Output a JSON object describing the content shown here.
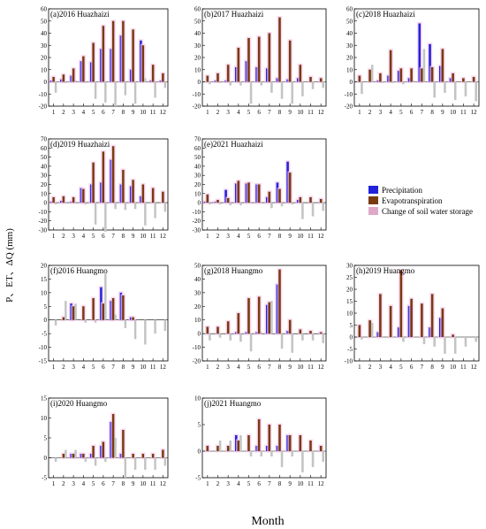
{
  "figure": {
    "ylabel": "P、ET、ΔQ (mm)",
    "xlabel": "Month"
  },
  "legend": [
    {
      "label": "Precipitation",
      "color": "#2222dd"
    },
    {
      "label": "Evapotranspiration",
      "color": "#7a3a10"
    },
    {
      "label": "Change of soil water storage",
      "color": "#e0a8c8"
    }
  ],
  "colors": {
    "precip": "#2222dd",
    "et": "#7a3a10",
    "dq": "#c4c4c4",
    "halo": "#f6c8ec"
  },
  "chart_data": [
    {
      "type": "bar",
      "title": "(a)2016 Huazhaizi",
      "categories": [
        "1",
        "2",
        "3",
        "4",
        "5",
        "6",
        "7",
        "8",
        "9",
        "10",
        "11",
        "12"
      ],
      "ylim": [
        -20,
        60
      ],
      "yticks": [
        -20,
        -10,
        0,
        10,
        20,
        30,
        40,
        50,
        60
      ],
      "series": [
        {
          "name": "Precipitation",
          "values": [
            1,
            2,
            5,
            17,
            16,
            27,
            27,
            38,
            10,
            34,
            1,
            1
          ]
        },
        {
          "name": "Evapotranspiration",
          "values": [
            4,
            6,
            11,
            21,
            32,
            46,
            50,
            50,
            43,
            30,
            14,
            7
          ]
        },
        {
          "name": "Change of soil water storage",
          "values": [
            -9,
            -1,
            1,
            -1,
            -14,
            -17,
            -20,
            -11,
            -18,
            3,
            -13,
            -5
          ]
        }
      ]
    },
    {
      "type": "bar",
      "title": "(b)2017 Huazhaizi",
      "categories": [
        "1",
        "2",
        "3",
        "4",
        "5",
        "6",
        "7",
        "8",
        "9",
        "10",
        "11",
        "12"
      ],
      "ylim": [
        -20,
        60
      ],
      "yticks": [
        -20,
        -10,
        0,
        10,
        20,
        30,
        40,
        50,
        60
      ],
      "series": [
        {
          "name": "Precipitation",
          "values": [
            0,
            1,
            1,
            12,
            17,
            12,
            11,
            3,
            2,
            3,
            0,
            0
          ]
        },
        {
          "name": "Evapotranspiration",
          "values": [
            5,
            7,
            14,
            28,
            36,
            37,
            40,
            53,
            34,
            14,
            4,
            3
          ]
        },
        {
          "name": "Change of soil water storage",
          "values": [
            -2,
            -1,
            -3,
            -3,
            -18,
            -3,
            -9,
            -14,
            -18,
            -12,
            -6,
            -5
          ]
        }
      ]
    },
    {
      "type": "bar",
      "title": "(c)2018 Huazhaizi",
      "categories": [
        "1",
        "2",
        "3",
        "4",
        "5",
        "6",
        "7",
        "8",
        "9",
        "10",
        "11",
        "12"
      ],
      "ylim": [
        -20,
        60
      ],
      "yticks": [
        -20,
        -10,
        0,
        10,
        20,
        30,
        40,
        50,
        60
      ],
      "series": [
        {
          "name": "Precipitation",
          "values": [
            0,
            0,
            1,
            5,
            9,
            3,
            48,
            31,
            13,
            3,
            0,
            0
          ]
        },
        {
          "name": "Evapotranspiration",
          "values": [
            5,
            10,
            7,
            26,
            11,
            11,
            11,
            12,
            27,
            7,
            3,
            4
          ]
        },
        {
          "name": "Change of soil water storage",
          "values": [
            -10,
            14,
            -1,
            -1,
            -2,
            1,
            27,
            -13,
            -9,
            -15,
            -12,
            -16
          ]
        }
      ]
    },
    {
      "type": "bar",
      "title": "(d)2019 Huazhaizi",
      "categories": [
        "1",
        "2",
        "3",
        "4",
        "5",
        "6",
        "7",
        "8",
        "9",
        "10",
        "11",
        "12"
      ],
      "ylim": [
        -30,
        70
      ],
      "yticks": [
        -30,
        -20,
        -10,
        0,
        10,
        20,
        30,
        40,
        50,
        60,
        70
      ],
      "series": [
        {
          "name": "Precipitation",
          "values": [
            1,
            2,
            1,
            16,
            20,
            22,
            47,
            20,
            18,
            7,
            0,
            0
          ]
        },
        {
          "name": "Evapotranspiration",
          "values": [
            6,
            7,
            6,
            15,
            44,
            56,
            62,
            36,
            25,
            20,
            16,
            12
          ]
        },
        {
          "name": "Change of soil water storage",
          "values": [
            -2,
            -1,
            -1,
            -2,
            -24,
            -32,
            -7,
            -8,
            -7,
            -25,
            -17,
            -10
          ]
        }
      ]
    },
    {
      "type": "bar",
      "title": "(e)2021 Huazhaizi",
      "categories": [
        "1",
        "2",
        "3",
        "4",
        "5",
        "6",
        "7",
        "8",
        "9",
        "10",
        "11",
        "12"
      ],
      "ylim": [
        -30,
        70
      ],
      "yticks": [
        -30,
        -20,
        -10,
        0,
        10,
        20,
        30,
        40,
        50,
        60,
        70
      ],
      "series": [
        {
          "name": "Precipitation",
          "values": [
            1,
            1,
            14,
            21,
            21,
            20,
            6,
            22,
            45,
            3,
            0,
            0
          ]
        },
        {
          "name": "Evapotranspiration",
          "values": [
            9,
            3,
            5,
            24,
            22,
            20,
            12,
            15,
            33,
            6,
            6,
            4
          ]
        },
        {
          "name": "Change of soil water storage",
          "values": [
            -2,
            -2,
            -3,
            -3,
            -1,
            0,
            -6,
            -4,
            -2,
            -18,
            -15,
            -9
          ]
        }
      ]
    },
    {
      "type": "bar",
      "title": "(f)2016 Huangmo",
      "categories": [
        "1",
        "2",
        "3",
        "4",
        "5",
        "6",
        "7",
        "8",
        "9",
        "10",
        "11",
        "12"
      ],
      "ylim": [
        -15,
        20
      ],
      "yticks": [
        -15,
        -10,
        -5,
        0,
        5,
        10,
        15,
        20
      ],
      "series": [
        {
          "name": "Precipitation",
          "values": [
            0,
            0,
            6,
            0,
            0,
            12,
            7,
            10,
            1,
            0,
            0,
            0
          ]
        },
        {
          "name": "Evapotranspiration",
          "values": [
            0,
            1,
            5,
            5,
            8,
            6,
            8,
            9,
            1,
            0,
            0,
            0
          ]
        },
        {
          "name": "Change of soil water storage",
          "values": [
            -2,
            7,
            6,
            -1,
            -1,
            17,
            2,
            -3,
            -7,
            -9,
            -5,
            -4
          ]
        }
      ]
    },
    {
      "type": "bar",
      "title": "(g)2018 Huangmo",
      "categories": [
        "1",
        "2",
        "3",
        "4",
        "5",
        "6",
        "7",
        "8",
        "9",
        "10",
        "11",
        "12"
      ],
      "ylim": [
        -20,
        50
      ],
      "yticks": [
        -20,
        -10,
        0,
        10,
        20,
        30,
        40,
        50
      ],
      "series": [
        {
          "name": "Precipitation",
          "values": [
            0,
            0,
            0,
            1,
            1,
            1,
            21,
            36,
            2,
            0,
            0,
            0
          ]
        },
        {
          "name": "Evapotranspiration",
          "values": [
            5,
            5,
            9,
            15,
            26,
            27,
            23,
            47,
            10,
            3,
            2,
            1
          ]
        },
        {
          "name": "Change of soil water storage",
          "values": [
            -5,
            -3,
            -5,
            -6,
            -13,
            1,
            24,
            -11,
            -14,
            -5,
            -5,
            -7
          ]
        }
      ]
    },
    {
      "type": "bar",
      "title": "(h)2019 Huangmo",
      "categories": [
        "1",
        "2",
        "3",
        "4",
        "5",
        "6",
        "7",
        "8",
        "9",
        "10",
        "11",
        "12"
      ],
      "ylim": [
        -10,
        30
      ],
      "yticks": [
        -10,
        -5,
        0,
        5,
        10,
        15,
        20,
        25,
        30
      ],
      "series": [
        {
          "name": "Precipitation",
          "values": [
            0,
            0,
            2,
            0,
            4,
            13,
            0,
            4,
            8,
            0,
            0,
            0
          ]
        },
        {
          "name": "Evapotranspiration",
          "values": [
            5,
            7,
            18,
            13,
            28,
            16,
            14,
            18,
            12,
            1,
            0,
            0
          ]
        },
        {
          "name": "Change of soil water storage",
          "values": [
            -1,
            6,
            0,
            0,
            -2,
            0,
            -3,
            -4,
            -7,
            -7,
            -4,
            -2
          ]
        }
      ]
    },
    {
      "type": "bar",
      "title": "(i)2020 Huangmo",
      "categories": [
        "1",
        "2",
        "3",
        "4",
        "5",
        "6",
        "7",
        "8",
        "9",
        "10",
        "11",
        "12"
      ],
      "ylim": [
        -5,
        15
      ],
      "yticks": [
        -5,
        0,
        5,
        10,
        15
      ],
      "series": [
        {
          "name": "Precipitation",
          "values": [
            0,
            0,
            1,
            1,
            1,
            3,
            9,
            1,
            0,
            0,
            0,
            0
          ]
        },
        {
          "name": "Evapotranspiration",
          "values": [
            0,
            1,
            1,
            1,
            3,
            4,
            11,
            7,
            1,
            1,
            1,
            2
          ]
        },
        {
          "name": "Change of soil water storage",
          "values": [
            -1,
            2,
            2,
            -1,
            -2,
            -1,
            5,
            -5,
            -3,
            -3,
            -3,
            -2
          ]
        }
      ]
    },
    {
      "type": "bar",
      "title": "(j)2021 Huangmo",
      "categories": [
        "1",
        "2",
        "3",
        "4",
        "5",
        "6",
        "7",
        "8",
        "9",
        "10",
        "11",
        "12"
      ],
      "ylim": [
        -5,
        10
      ],
      "yticks": [
        -5,
        0,
        5,
        10
      ],
      "series": [
        {
          "name": "Precipitation",
          "values": [
            0,
            0,
            0,
            3,
            0,
            1,
            1,
            1,
            3,
            0,
            0,
            0
          ]
        },
        {
          "name": "Evapotranspiration",
          "values": [
            1,
            1,
            1,
            2,
            3,
            6,
            5,
            5,
            3,
            3,
            2,
            1
          ]
        },
        {
          "name": "Change of soil water storage",
          "values": [
            0,
            2,
            2,
            3,
            -1,
            -1,
            -1,
            -3,
            -1,
            -4,
            -3,
            -2
          ]
        }
      ]
    }
  ]
}
